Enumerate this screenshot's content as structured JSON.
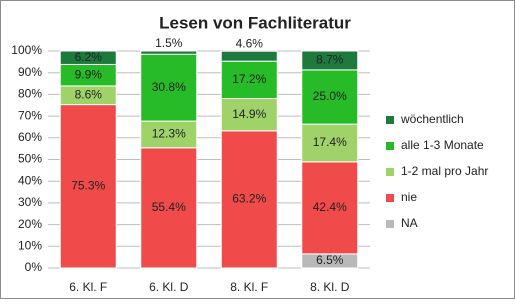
{
  "chart_data": {
    "type": "stacked_bar",
    "title": "Lesen von Fachliteratur",
    "categories": [
      "6. Kl. F",
      "6. Kl. D",
      "8. Kl. F",
      "8. Kl. D"
    ],
    "series": [
      {
        "name": "NA",
        "color": "#b9b9b9",
        "values": [
          null,
          null,
          null,
          6.5
        ],
        "value_labels": [
          null,
          null,
          null,
          "6.5%"
        ]
      },
      {
        "name": "nie",
        "color": "#f04a4a",
        "values": [
          75.3,
          55.4,
          63.2,
          42.4
        ],
        "value_labels": [
          "75.3%",
          "55.4%",
          "63.2%",
          "42.4%"
        ]
      },
      {
        "name": "1-2 mal pro Jahr",
        "color": "#9fd36a",
        "values": [
          8.6,
          12.3,
          14.9,
          17.4
        ],
        "value_labels": [
          "8.6%",
          "12.3%",
          "14.9%",
          "17.4%"
        ]
      },
      {
        "name": "alle 1-3 Monate",
        "color": "#27bb27",
        "values": [
          9.9,
          30.8,
          17.2,
          25.0
        ],
        "value_labels": [
          "9.9%",
          "30.8%",
          "17.2%",
          "25.0%"
        ]
      },
      {
        "name": "wöchentlich",
        "color": "#1d7a3c",
        "values": [
          6.2,
          1.5,
          4.6,
          8.7
        ],
        "value_labels": [
          "6.2%",
          "1.5%",
          "4.6%",
          "8.7%"
        ]
      }
    ],
    "ylim": [
      0,
      100
    ],
    "yticks": [
      {
        "value": 0,
        "label": "0%"
      },
      {
        "value": 10,
        "label": "10%"
      },
      {
        "value": 20,
        "label": "20%"
      },
      {
        "value": 30,
        "label": "30%"
      },
      {
        "value": 40,
        "label": "40%"
      },
      {
        "value": 50,
        "label": "50%"
      },
      {
        "value": 60,
        "label": "60%"
      },
      {
        "value": 70,
        "label": "70%"
      },
      {
        "value": 80,
        "label": "80%"
      },
      {
        "value": 90,
        "label": "90%"
      },
      {
        "value": 100,
        "label": "100%"
      }
    ],
    "grid": true,
    "legend": "right"
  }
}
